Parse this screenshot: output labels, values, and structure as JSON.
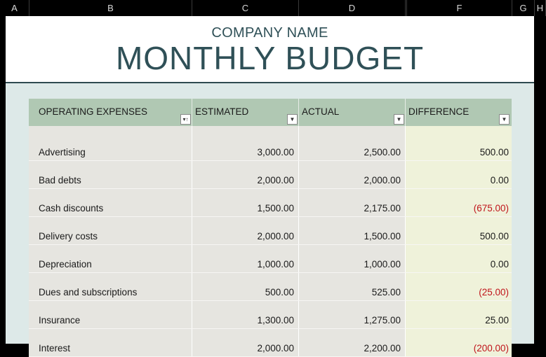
{
  "columns": [
    "A",
    "B",
    "C",
    "D",
    "",
    "F",
    "G",
    "H"
  ],
  "company_name": "COMPANY NAME",
  "title": "MONTHLY BUDGET",
  "table": {
    "headers": [
      "OPERATING EXPENSES",
      "ESTIMATED",
      "ACTUAL",
      "DIFFERENCE"
    ],
    "rows": [
      {
        "expense": "Advertising",
        "estimated": "3,000.00",
        "actual": "2,500.00",
        "difference": "500.00",
        "negative": false
      },
      {
        "expense": "Bad debts",
        "estimated": "2,000.00",
        "actual": "2,000.00",
        "difference": "0.00",
        "negative": false
      },
      {
        "expense": "Cash discounts",
        "estimated": "1,500.00",
        "actual": "2,175.00",
        "difference": "(675.00)",
        "negative": true
      },
      {
        "expense": "Delivery costs",
        "estimated": "2,000.00",
        "actual": "1,500.00",
        "difference": "500.00",
        "negative": false
      },
      {
        "expense": "Depreciation",
        "estimated": "1,000.00",
        "actual": "1,000.00",
        "difference": "0.00",
        "negative": false
      },
      {
        "expense": "Dues and subscriptions",
        "estimated": "500.00",
        "actual": "525.00",
        "difference": "(25.00)",
        "negative": true
      },
      {
        "expense": "Insurance",
        "estimated": "1,300.00",
        "actual": "1,275.00",
        "difference": "25.00",
        "negative": false
      },
      {
        "expense": "Interest",
        "estimated": "2,000.00",
        "actual": "2,200.00",
        "difference": "(200.00)",
        "negative": true
      }
    ]
  },
  "colors": {
    "header_green": "#b0c8b3",
    "grey_cell": "#e6e5e0",
    "diff_cell": "#eff2da",
    "negative": "#c0141a",
    "title": "#2f5057",
    "background": "#dde9e8"
  }
}
